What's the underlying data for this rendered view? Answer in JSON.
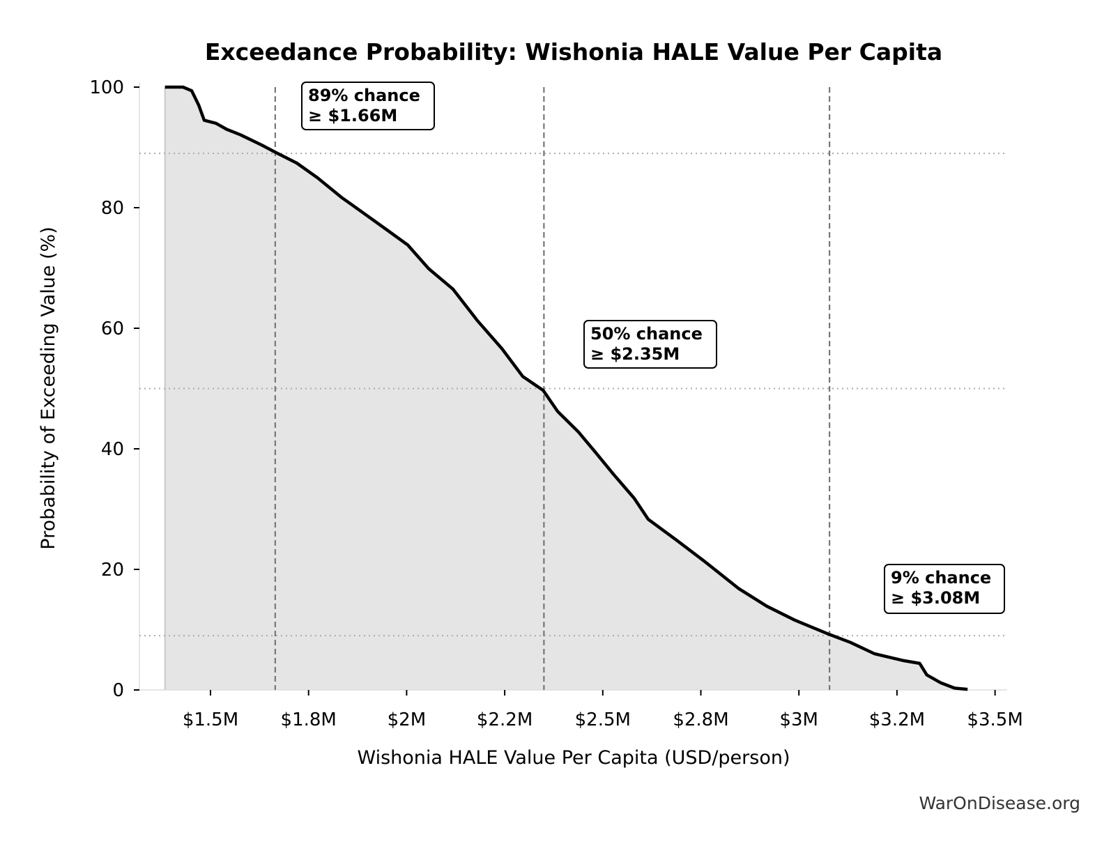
{
  "chart_data": {
    "type": "area",
    "title": "Exceedance Probability: Wishonia HALE Value Per Capita",
    "xlabel": "Wishonia HALE Value Per Capita (USD/person)",
    "ylabel": "Probability of Exceeding Value (%)",
    "xlim": [
      1.32,
      3.53
    ],
    "ylim": [
      0,
      100
    ],
    "x_unit": "million USD per person",
    "x_ticks": [
      1.5,
      1.75,
      2.0,
      2.25,
      2.5,
      2.75,
      3.0,
      3.25,
      3.5
    ],
    "x_tick_labels": [
      "$1.5M",
      "$1.8M",
      "$2M",
      "$2.2M",
      "$2.5M",
      "$2.8M",
      "$3M",
      "$3.2M",
      "$3.5M"
    ],
    "y_ticks": [
      0,
      20,
      40,
      60,
      80,
      100
    ],
    "y_tick_labels": [
      "0",
      "20",
      "40",
      "60",
      "80",
      "100"
    ],
    "grid": false,
    "series": [
      {
        "x": [
          1.384,
          1.43,
          1.452,
          1.47,
          1.484,
          1.514,
          1.541,
          1.576,
          1.63,
          1.665,
          1.72,
          1.772,
          1.834,
          1.888,
          1.95,
          2.003,
          2.056,
          2.118,
          2.18,
          2.243,
          2.296,
          2.348,
          2.385,
          2.438,
          2.483,
          2.527,
          2.58,
          2.616,
          2.687,
          2.758,
          2.847,
          2.918,
          2.989,
          3.078,
          3.131,
          3.193,
          3.264,
          3.308,
          3.326,
          3.361,
          3.397,
          3.43
        ],
        "y": [
          100,
          100,
          99.4,
          97,
          94.5,
          94,
          93,
          92.1,
          90.4,
          89.2,
          87.4,
          85,
          81.7,
          79.2,
          76.3,
          73.8,
          69.9,
          66.5,
          61.3,
          56.6,
          52,
          49.7,
          46.2,
          42.8,
          39.3,
          35.8,
          31.8,
          28.3,
          24.9,
          21.4,
          16.8,
          13.9,
          11.6,
          9.2,
          7.9,
          6,
          4.9,
          4.4,
          2.5,
          1.2,
          0.3,
          0.1
        ]
      }
    ],
    "reference_lines": [
      {
        "x": 1.665,
        "y": 89,
        "label_line1": "89% chance",
        "label_line2": "≥ $1.66M"
      },
      {
        "x": 2.35,
        "y": 50,
        "label_line1": "50% chance",
        "label_line2": "≥ $2.35M"
      },
      {
        "x": 3.078,
        "y": 9,
        "label_line1": "9% chance",
        "label_line2": "≥ $3.08M"
      }
    ],
    "colors": {
      "line": "#000000",
      "fill": "#e5e5e5",
      "ref": "#777777"
    }
  },
  "watermark": "WarOnDisease.org"
}
